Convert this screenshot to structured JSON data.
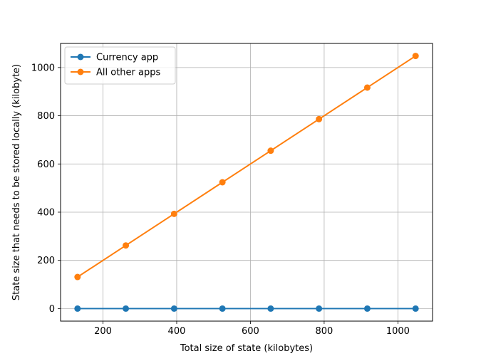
{
  "chart_data": {
    "type": "line",
    "xlabel": "Total size of state (kilobytes)",
    "ylabel": "State size that needs to be stored locally (kilobyte)",
    "x": [
      131,
      262,
      393,
      524,
      655,
      786,
      917,
      1048
    ],
    "series": [
      {
        "name": "Currency app",
        "color": "#1f77b4",
        "values": [
          0,
          0,
          0,
          0,
          0,
          0,
          0,
          0
        ]
      },
      {
        "name": "All other apps",
        "color": "#ff7f0e",
        "values": [
          131,
          262,
          393,
          524,
          655,
          786,
          917,
          1048
        ]
      }
    ],
    "xlim": [
      85,
      1094
    ],
    "ylim": [
      -52,
      1100
    ],
    "xticks": [
      200,
      400,
      600,
      800,
      1000
    ],
    "yticks": [
      0,
      200,
      400,
      600,
      800,
      1000
    ],
    "grid": true,
    "legend_position": "top-left"
  }
}
